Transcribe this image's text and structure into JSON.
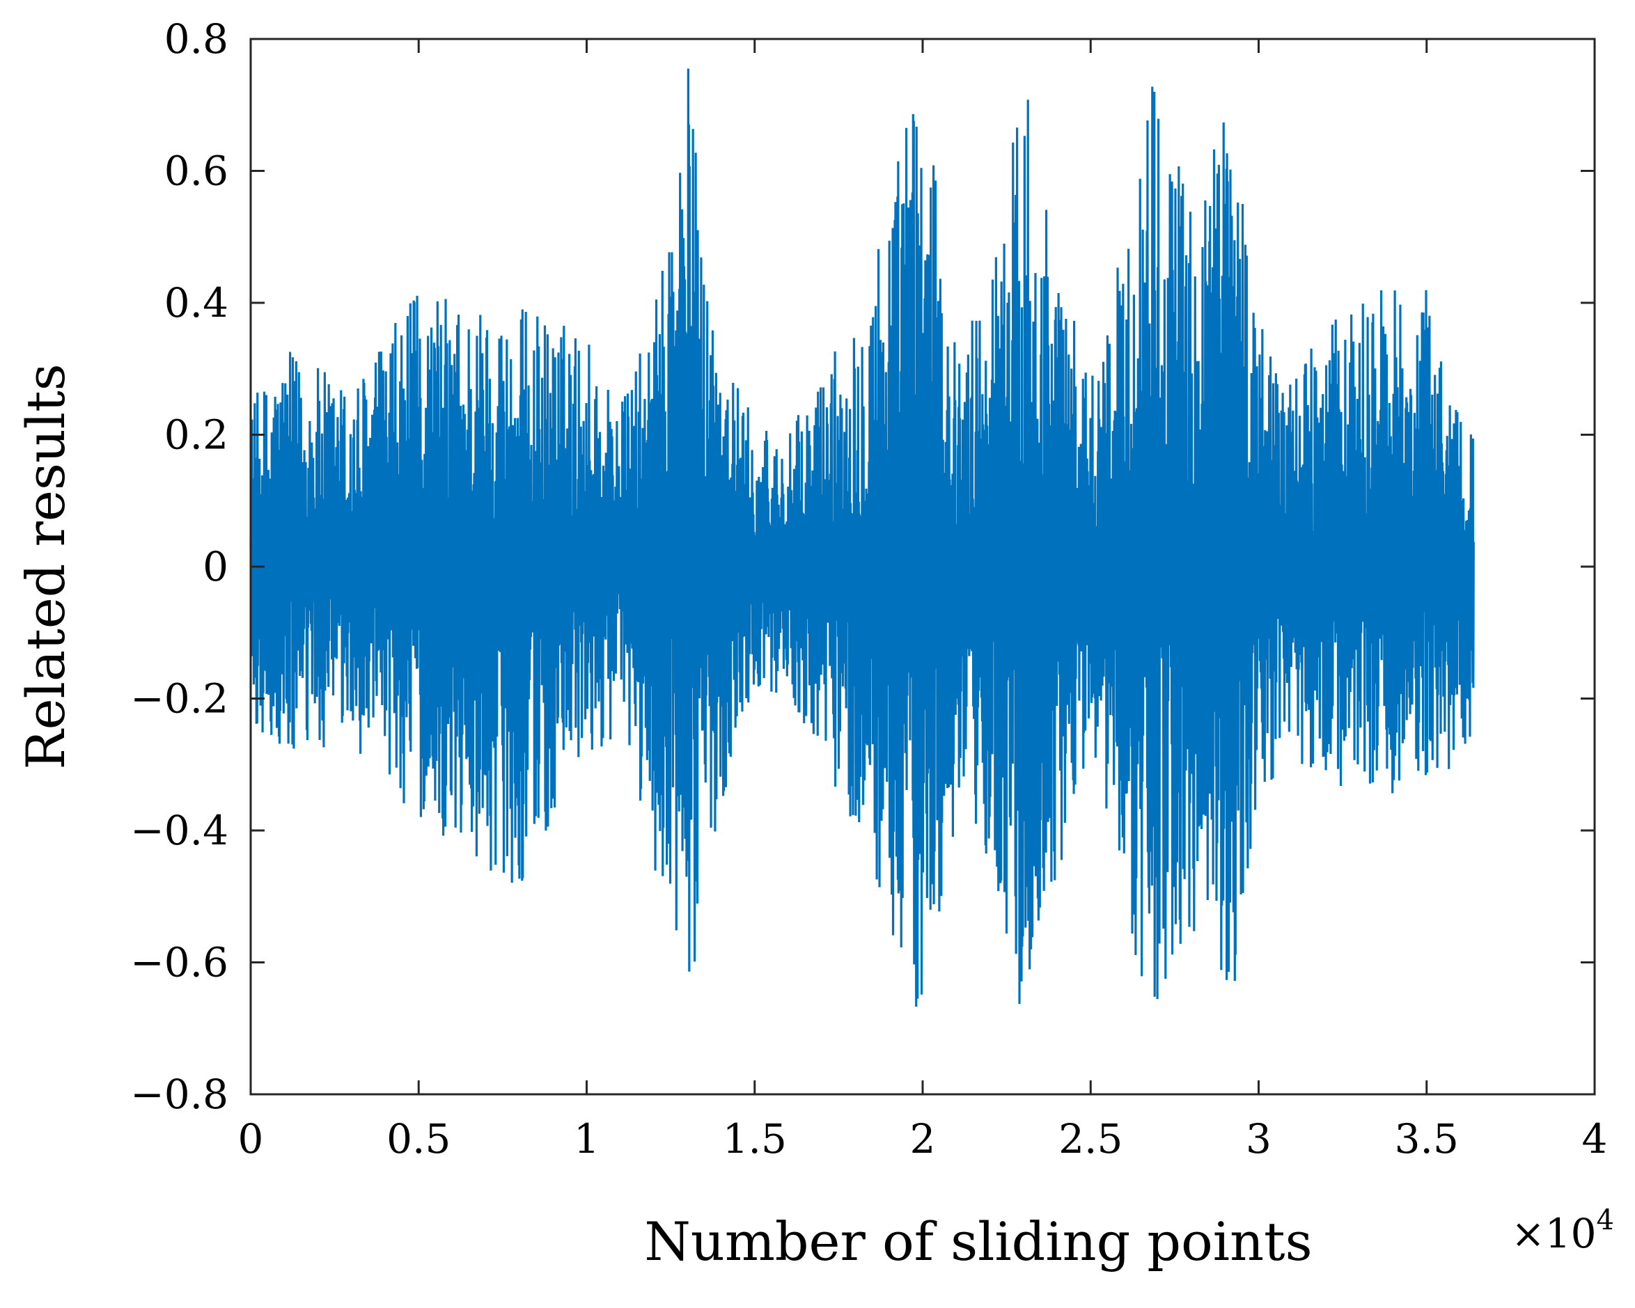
{
  "chart_data": {
    "type": "line",
    "title": "",
    "xlabel": "Number of sliding points",
    "ylabel": "Related results",
    "x_multiplier_label": "×10",
    "x_multiplier_exponent": "4",
    "xlim": [
      0,
      4
    ],
    "ylim": [
      -0.8,
      0.8
    ],
    "x_ticks": [
      0,
      0.5,
      1,
      1.5,
      2,
      2.5,
      3,
      3.5,
      4
    ],
    "x_tick_labels": [
      "0",
      "0.5",
      "1",
      "1.5",
      "2",
      "2.5",
      "3",
      "3.5",
      "4"
    ],
    "y_ticks": [
      -0.8,
      -0.6,
      -0.4,
      -0.2,
      0,
      0.2,
      0.4,
      0.6,
      0.8
    ],
    "y_tick_labels": [
      "−0.8",
      "−0.6",
      "−0.4",
      "−0.2",
      "0",
      "0.2",
      "0.4",
      "0.6",
      "0.8"
    ],
    "grid": false,
    "legend": "none",
    "series_color": "#0072BD",
    "series": [
      {
        "x_range": [
          0,
          3.64
        ],
        "description_envelope_x": [
          0,
          0.1,
          0.3,
          0.5,
          0.8,
          1.0,
          1.1,
          1.2,
          1.3,
          1.36,
          1.45,
          1.5,
          1.6,
          1.8,
          1.9,
          1.99,
          2.1,
          2.2,
          2.31,
          2.4,
          2.5,
          2.6,
          2.68,
          2.8,
          2.92,
          3.0,
          3.1,
          3.3,
          3.5,
          3.64
        ],
        "envelope_upper": [
          0.25,
          0.33,
          0.28,
          0.42,
          0.4,
          0.36,
          0.25,
          0.38,
          0.79,
          0.45,
          0.28,
          0.22,
          0.2,
          0.4,
          0.58,
          0.79,
          0.33,
          0.45,
          0.79,
          0.45,
          0.3,
          0.5,
          0.79,
          0.55,
          0.79,
          0.37,
          0.3,
          0.42,
          0.42,
          0.2
        ],
        "envelope_lower": [
          -0.24,
          -0.31,
          -0.27,
          -0.39,
          -0.49,
          -0.3,
          -0.25,
          -0.45,
          -0.72,
          -0.45,
          -0.26,
          -0.18,
          -0.2,
          -0.4,
          -0.55,
          -0.72,
          -0.4,
          -0.45,
          -0.72,
          -0.48,
          -0.28,
          -0.5,
          -0.73,
          -0.55,
          -0.72,
          -0.37,
          -0.3,
          -0.35,
          -0.35,
          -0.27
        ]
      }
    ]
  }
}
